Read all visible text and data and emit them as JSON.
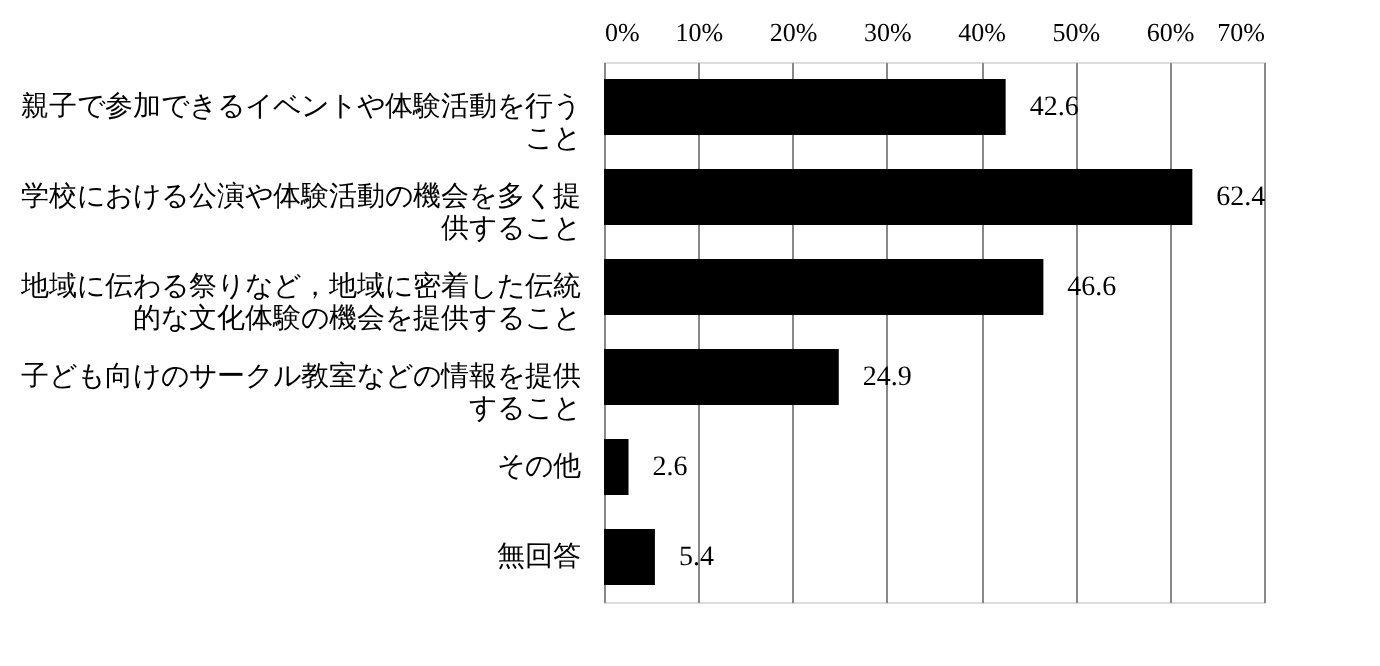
{
  "chart_data": {
    "type": "bar",
    "orientation": "horizontal",
    "categories": [
      "親子で参加できるイベントや体験活動を行うこと",
      "学校における公演や体験活動の機会を多く提供すること",
      "地域に伝わる祭りなど，地域に密着した伝統的な文化体験の機会を提供すること",
      "子ども向けのサークル教室などの情報を提供すること",
      "その他",
      "無回答"
    ],
    "values": [
      42.6,
      62.4,
      46.6,
      24.9,
      2.6,
      5.4
    ],
    "color": "#000000",
    "xlim": [
      0,
      70
    ],
    "xticks": [
      {
        "value": 0,
        "label": "0%"
      },
      {
        "value": 10,
        "label": "10%"
      },
      {
        "value": 20,
        "label": "20%"
      },
      {
        "value": 30,
        "label": "30%"
      },
      {
        "value": 40,
        "label": "40%"
      },
      {
        "value": 50,
        "label": "50%"
      },
      {
        "value": 60,
        "label": "60%"
      },
      {
        "value": 70,
        "label": "70%"
      }
    ],
    "grid": "x",
    "data_labels": true
  }
}
